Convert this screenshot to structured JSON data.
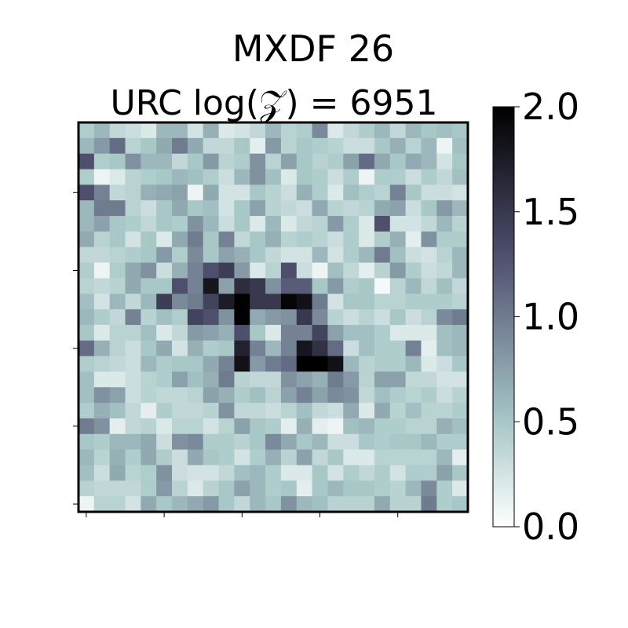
{
  "chart_data": {
    "type": "heatmap",
    "title": "MXDF 26",
    "subtitle": "URC log(𝒵) = 6951",
    "xlabel": "",
    "ylabel": "",
    "colormap": "bone_r",
    "clim": [
      0.0,
      2.0
    ],
    "colorbar_ticks": [
      "0.0",
      "0.5",
      "1.0",
      "1.5",
      "2.0"
    ],
    "colorbar_tick_values": [
      0.0,
      0.5,
      1.0,
      1.5,
      2.0
    ],
    "x_tick_positions": [
      0,
      5,
      10,
      15,
      20
    ],
    "y_tick_positions": [
      4,
      9,
      14,
      19,
      24
    ],
    "tick_labels_shown": false,
    "rows": [
      [
        0.45,
        0.6,
        0.35,
        0.3,
        0.2,
        0.6,
        0.6,
        0.25,
        0.65,
        0.2,
        0.25,
        0.35,
        0.6,
        0.4,
        0.45,
        0.9,
        0.2,
        0.35,
        0.45,
        0.6,
        0.35,
        0.6,
        0.5,
        0.55,
        0.5
      ],
      [
        0.6,
        0.8,
        1.1,
        0.4,
        0.5,
        0.7,
        1.0,
        0.7,
        0.35,
        0.35,
        0.5,
        0.15,
        0.8,
        0.4,
        0.5,
        0.45,
        0.4,
        0.3,
        0.3,
        0.5,
        0.65,
        0.4,
        0.6,
        0.1,
        0.55
      ],
      [
        1.3,
        0.45,
        0.5,
        0.85,
        0.6,
        0.6,
        0.35,
        0.5,
        0.8,
        0.4,
        0.45,
        0.85,
        0.4,
        0.75,
        0.5,
        0.4,
        0.45,
        0.75,
        1.1,
        0.7,
        0.5,
        0.7,
        0.6,
        0.25,
        0.5
      ],
      [
        0.45,
        0.1,
        0.2,
        0.4,
        0.45,
        0.5,
        0.6,
        0.55,
        0.45,
        0.3,
        0.6,
        0.85,
        0.55,
        0.2,
        0.5,
        0.45,
        0.3,
        0.45,
        0.1,
        0.45,
        0.45,
        0.3,
        0.45,
        0.35,
        0.55
      ],
      [
        1.3,
        0.95,
        0.35,
        0.4,
        0.65,
        0.7,
        0.75,
        0.1,
        0.7,
        0.25,
        0.25,
        0.5,
        0.4,
        0.3,
        0.65,
        0.45,
        0.2,
        0.55,
        0.45,
        0.4,
        0.95,
        0.5,
        0.3,
        0.3,
        0.25
      ],
      [
        0.6,
        1.0,
        1.0,
        0.4,
        0.3,
        0.5,
        0.7,
        0.5,
        0.55,
        0.25,
        0.5,
        0.75,
        0.4,
        0.35,
        0.3,
        0.7,
        0.4,
        0.35,
        0.4,
        0.7,
        0.75,
        0.3,
        0.5,
        0.8,
        0.6
      ],
      [
        0.6,
        0.75,
        0.5,
        0.45,
        0.35,
        0.5,
        0.45,
        0.85,
        0.6,
        0.3,
        0.5,
        0.2,
        0.6,
        0.2,
        0.35,
        0.4,
        0.8,
        0.45,
        0.2,
        1.3,
        0.25,
        0.25,
        0.35,
        0.6,
        0.4
      ],
      [
        0.7,
        0.4,
        0.5,
        0.25,
        0.5,
        0.2,
        0.7,
        1.0,
        0.5,
        0.95,
        0.35,
        0.5,
        0.65,
        0.4,
        0.45,
        0.4,
        0.3,
        0.45,
        0.2,
        0.45,
        0.65,
        0.15,
        0.85,
        0.45,
        0.45
      ],
      [
        0.35,
        0.35,
        0.4,
        0.45,
        0.5,
        0.8,
        0.45,
        0.9,
        0.5,
        0.75,
        0.65,
        0.5,
        0.35,
        0.25,
        0.25,
        0.6,
        0.25,
        0.45,
        0.6,
        1.0,
        0.55,
        0.3,
        0.25,
        0.4,
        0.6
      ],
      [
        0.45,
        0.1,
        0.45,
        0.7,
        0.85,
        0.3,
        0.65,
        0.95,
        1.3,
        1.45,
        0.8,
        0.2,
        0.4,
        1.3,
        0.3,
        0.1,
        0.55,
        0.35,
        0.15,
        0.4,
        0.8,
        0.45,
        0.3,
        0.35,
        0.6
      ],
      [
        0.4,
        0.35,
        0.4,
        0.7,
        0.5,
        0.5,
        1.3,
        0.95,
        1.8,
        0.75,
        1.6,
        1.5,
        0.85,
        1.2,
        1.2,
        0.5,
        0.8,
        0.45,
        0.5,
        0.05,
        0.4,
        0.6,
        0.35,
        0.55,
        0.35
      ],
      [
        0.55,
        0.25,
        0.6,
        0.35,
        0.6,
        1.45,
        0.9,
        1.0,
        1.4,
        1.75,
        2.0,
        1.5,
        1.5,
        1.95,
        1.85,
        1.0,
        0.25,
        0.5,
        0.5,
        0.4,
        0.4,
        0.45,
        0.45,
        0.45,
        0.4
      ],
      [
        0.6,
        0.45,
        0.35,
        0.95,
        0.4,
        0.55,
        0.45,
        1.4,
        1.3,
        0.85,
        2.0,
        0.7,
        0.8,
        0.85,
        1.5,
        0.9,
        0.4,
        0.3,
        0.4,
        0.3,
        0.5,
        0.3,
        0.4,
        0.9,
        1.0
      ],
      [
        0.5,
        0.2,
        0.4,
        0.4,
        0.55,
        0.2,
        0.35,
        0.8,
        0.75,
        0.65,
        1.3,
        0.5,
        0.2,
        0.95,
        0.95,
        1.4,
        0.75,
        0.55,
        0.55,
        0.45,
        0.2,
        0.2,
        0.2,
        0.55,
        0.6
      ],
      [
        1.1,
        0.65,
        0.4,
        0.3,
        0.5,
        0.7,
        0.25,
        0.65,
        0.45,
        0.5,
        1.7,
        0.95,
        0.6,
        0.95,
        1.8,
        1.55,
        1.1,
        0.3,
        0.55,
        0.45,
        0.45,
        0.95,
        0.15,
        0.55,
        0.6
      ],
      [
        0.45,
        0.4,
        0.35,
        0.3,
        0.6,
        0.45,
        0.5,
        0.5,
        0.7,
        0.95,
        1.85,
        0.8,
        1.0,
        1.1,
        2.0,
        2.0,
        1.85,
        0.6,
        0.4,
        0.45,
        0.45,
        0.6,
        0.2,
        0.3,
        0.5
      ],
      [
        0.55,
        0.2,
        0.2,
        0.3,
        0.4,
        0.45,
        0.75,
        0.55,
        0.65,
        1.0,
        0.4,
        0.35,
        0.35,
        0.85,
        0.75,
        0.65,
        1.0,
        0.8,
        0.4,
        0.75,
        0.75,
        0.35,
        0.35,
        0.25,
        0.25
      ],
      [
        0.55,
        0.85,
        0.75,
        0.3,
        0.4,
        0.35,
        0.35,
        0.4,
        0.75,
        0.65,
        0.45,
        0.55,
        0.4,
        0.75,
        0.95,
        0.75,
        0.9,
        0.85,
        0.35,
        0.55,
        0.45,
        0.4,
        0.45,
        0.3,
        0.4
      ],
      [
        0.45,
        0.65,
        0.55,
        0.35,
        0.15,
        0.45,
        0.35,
        0.35,
        0.4,
        0.85,
        0.35,
        0.35,
        0.3,
        0.4,
        0.55,
        0.35,
        0.3,
        0.7,
        0.2,
        0.7,
        0.4,
        0.55,
        0.4,
        0.4,
        0.45
      ],
      [
        1.0,
        0.85,
        0.15,
        0.35,
        0.4,
        0.2,
        0.4,
        0.4,
        0.25,
        0.4,
        0.75,
        0.5,
        0.45,
        0.15,
        0.65,
        0.15,
        0.1,
        0.55,
        0.6,
        0.45,
        0.45,
        0.4,
        0.4,
        0.65,
        0.55
      ],
      [
        0.5,
        0.45,
        0.6,
        0.6,
        0.7,
        0.3,
        0.85,
        0.9,
        0.45,
        0.45,
        0.4,
        0.5,
        0.9,
        0.7,
        0.5,
        0.6,
        0.3,
        0.3,
        0.5,
        0.45,
        0.5,
        0.5,
        0.6,
        0.45,
        0.45
      ],
      [
        0.6,
        0.4,
        0.65,
        0.45,
        0.7,
        0.45,
        0.3,
        0.7,
        0.5,
        0.45,
        0.25,
        0.45,
        0.65,
        0.4,
        0.75,
        0.35,
        0.5,
        0.2,
        0.2,
        0.4,
        0.4,
        0.4,
        0.4,
        0.6,
        0.15
      ],
      [
        0.55,
        0.3,
        0.7,
        0.4,
        0.45,
        0.85,
        0.3,
        0.25,
        0.25,
        0.35,
        0.55,
        0.6,
        0.45,
        0.2,
        0.2,
        0.5,
        0.25,
        0.45,
        0.35,
        0.45,
        0.25,
        0.45,
        0.45,
        0.75,
        0.5
      ],
      [
        0.4,
        0.35,
        0.35,
        0.35,
        0.45,
        0.8,
        0.4,
        0.2,
        0.4,
        0.5,
        0.75,
        0.6,
        0.45,
        0.5,
        0.15,
        0.5,
        0.6,
        0.5,
        0.5,
        0.45,
        0.4,
        0.6,
        0.9,
        0.45,
        0.2
      ],
      [
        0.1,
        0.4,
        0.4,
        0.25,
        0.7,
        0.5,
        0.6,
        0.7,
        0.8,
        0.5,
        0.35,
        0.6,
        0.5,
        0.85,
        0.6,
        0.55,
        0.4,
        0.4,
        0.4,
        0.7,
        0.4,
        0.4,
        1.0,
        0.45,
        0.5
      ]
    ]
  }
}
